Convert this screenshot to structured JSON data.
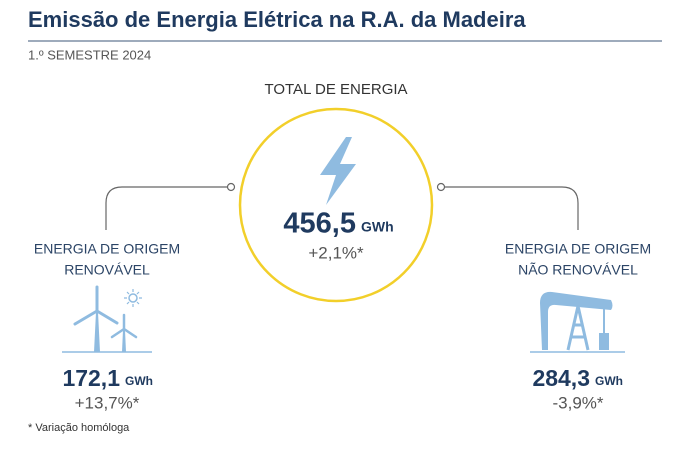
{
  "header": {
    "title": "Emissão de Energia Elétrica na R.A. da Madeira",
    "subtitle": "1.º SEMESTRE 2024"
  },
  "total": {
    "label": "TOTAL DE ENERGIA",
    "value": "456,5",
    "unit": "GWh",
    "change": "+2,1%*"
  },
  "renewable": {
    "label_lines": [
      "ENERGIA DE ORIGEM",
      "RENOVÁVEL"
    ],
    "value": "172,1",
    "unit": "GWh",
    "change": "+13,7%*"
  },
  "non_renewable": {
    "label_lines": [
      "ENERGIA DE ORIGEM",
      "NÃO RENOVÁVEL"
    ],
    "value": "284,3",
    "unit": "GWh",
    "change": "-3,9%*"
  },
  "footnote": "* Variação homóloga"
}
